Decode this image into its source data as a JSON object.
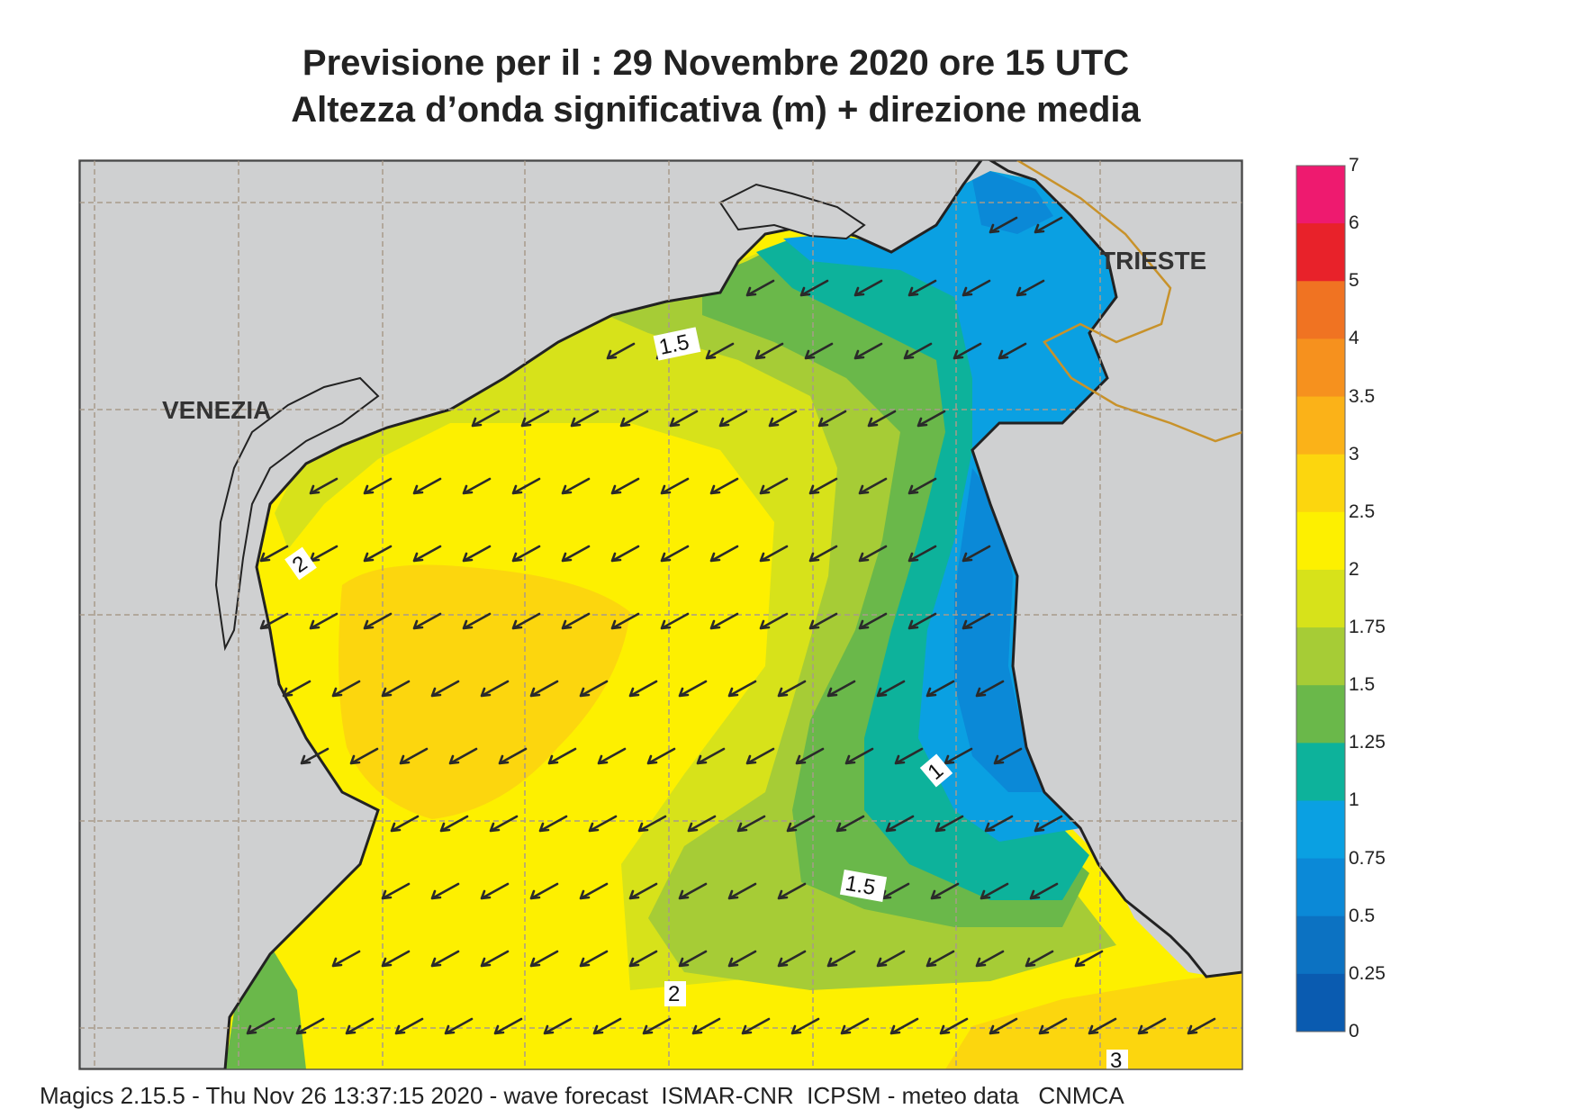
{
  "title": {
    "line1": "Previsione per il  :  29 Novembre  2020   ore 15 UTC",
    "line2": "Altezza d’onda significativa (m) + direzione media"
  },
  "cities": {
    "venezia": "VENEZIA",
    "trieste": "TRIESTE"
  },
  "contour_labels": {
    "c1": "1.5",
    "c2": "2",
    "c3": "1",
    "c4": "1.5",
    "c5": "2",
    "c6": "3"
  },
  "colorbar": {
    "labels": [
      "7",
      "6",
      "5",
      "4",
      "3.5",
      "3",
      "2.5",
      "2",
      "1.75",
      "1.5",
      "1.25",
      "1",
      "0.75",
      "0.5",
      "0.25",
      "0"
    ],
    "colors": [
      "#ee1a6f",
      "#e8222a",
      "#f07322",
      "#f6911e",
      "#fbb218",
      "#fcd60e",
      "#fdf000",
      "#d7e21a",
      "#a6cc36",
      "#6ab84a",
      "#0db29b",
      "#0aa0e2",
      "#0b89d7",
      "#0c72c2",
      "#0a5bb0"
    ]
  },
  "map_colors": {
    "land": "#cfd0d1",
    "coast": "#222222",
    "border": "#c8922a",
    "grid": "#a89a8a",
    "arrow": "#2a2a2a"
  },
  "wave_direction": "arrows pointing south-west (from north-east)",
  "footer": "Magics 2.15.5 - Thu Nov 26 13:37:15 2020 - wave forecast  ISMAR-CNR  ICPSM - meteo data   CNMCA"
}
